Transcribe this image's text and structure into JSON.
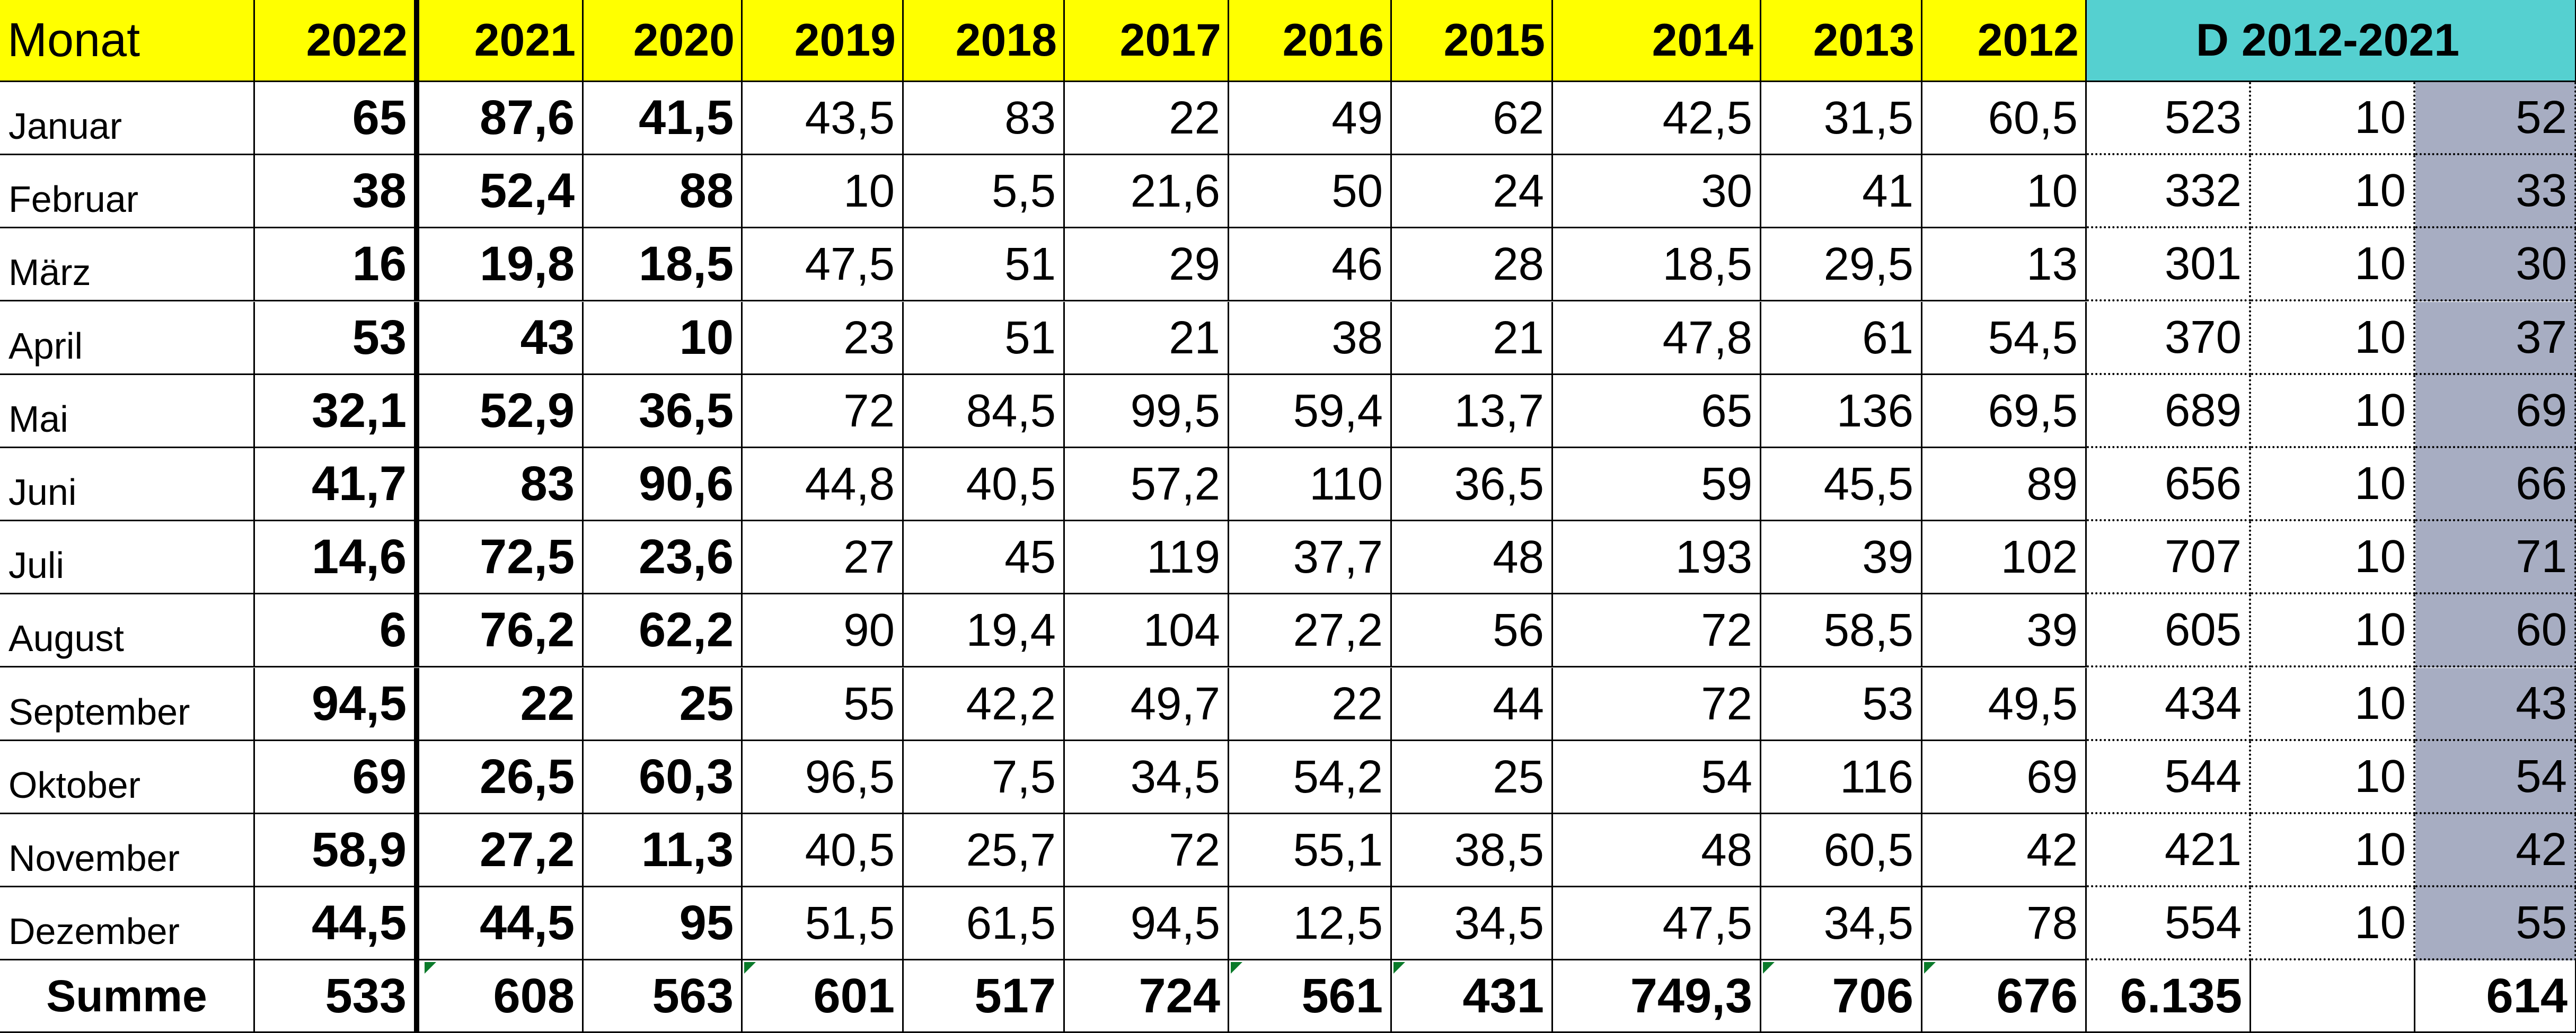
{
  "header": {
    "month": "Monat",
    "years": [
      "2022",
      "2021",
      "2020",
      "2019",
      "2018",
      "2017",
      "2016",
      "2015",
      "2014",
      "2013",
      "2012"
    ],
    "avg_title": "D 2012-2021"
  },
  "rows": [
    {
      "label": "Januar",
      "values": [
        "65",
        "87,6",
        "41,5",
        "43,5",
        "83",
        "22",
        "49",
        "62",
        "42,5",
        "31,5",
        "60,5"
      ],
      "sum": "523",
      "count": "10",
      "avg": "52"
    },
    {
      "label": "Februar",
      "values": [
        "38",
        "52,4",
        "88",
        "10",
        "5,5",
        "21,6",
        "50",
        "24",
        "30",
        "41",
        "10"
      ],
      "sum": "332",
      "count": "10",
      "avg": "33"
    },
    {
      "label": "März",
      "values": [
        "16",
        "19,8",
        "18,5",
        "47,5",
        "51",
        "29",
        "46",
        "28",
        "18,5",
        "29,5",
        "13"
      ],
      "sum": "301",
      "count": "10",
      "avg": "30"
    },
    {
      "label": "April",
      "values": [
        "53",
        "43",
        "10",
        "23",
        "51",
        "21",
        "38",
        "21",
        "47,8",
        "61",
        "54,5"
      ],
      "sum": "370",
      "count": "10",
      "avg": "37"
    },
    {
      "label": "Mai",
      "values": [
        "32,1",
        "52,9",
        "36,5",
        "72",
        "84,5",
        "99,5",
        "59,4",
        "13,7",
        "65",
        "136",
        "69,5"
      ],
      "sum": "689",
      "count": "10",
      "avg": "69"
    },
    {
      "label": "Juni",
      "values": [
        "41,7",
        "83",
        "90,6",
        "44,8",
        "40,5",
        "57,2",
        "110",
        "36,5",
        "59",
        "45,5",
        "89"
      ],
      "sum": "656",
      "count": "10",
      "avg": "66"
    },
    {
      "label": "Juli",
      "values": [
        "14,6",
        "72,5",
        "23,6",
        "27",
        "45",
        "119",
        "37,7",
        "48",
        "193",
        "39",
        "102"
      ],
      "sum": "707",
      "count": "10",
      "avg": "71"
    },
    {
      "label": "August",
      "values": [
        "6",
        "76,2",
        "62,2",
        "90",
        "19,4",
        "104",
        "27,2",
        "56",
        "72",
        "58,5",
        "39"
      ],
      "sum": "605",
      "count": "10",
      "avg": "60"
    },
    {
      "label": "September",
      "values": [
        "94,5",
        "22",
        "25",
        "55",
        "42,2",
        "49,7",
        "22",
        "44",
        "72",
        "53",
        "49,5"
      ],
      "sum": "434",
      "count": "10",
      "avg": "43"
    },
    {
      "label": "Oktober",
      "values": [
        "69",
        "26,5",
        "60,3",
        "96,5",
        "7,5",
        "34,5",
        "54,2",
        "25",
        "54",
        "116",
        "69"
      ],
      "sum": "544",
      "count": "10",
      "avg": "54"
    },
    {
      "label": "November",
      "values": [
        "58,9",
        "27,2",
        "11,3",
        "40,5",
        "25,7",
        "72",
        "55,1",
        "38,5",
        "48",
        "60,5",
        "42"
      ],
      "sum": "421",
      "count": "10",
      "avg": "42"
    },
    {
      "label": "Dezember",
      "values": [
        "44,5",
        "44,5",
        "95",
        "51,5",
        "61,5",
        "94,5",
        "12,5",
        "34,5",
        "47,5",
        "34,5",
        "78"
      ],
      "sum": "554",
      "count": "10",
      "avg": "55"
    }
  ],
  "total": {
    "label": "Summe",
    "values": [
      "533",
      "608",
      "563",
      "601",
      "517",
      "724",
      "561",
      "431",
      "749,3",
      "706",
      "676"
    ],
    "sum": "6.135",
    "avg": "614"
  }
}
